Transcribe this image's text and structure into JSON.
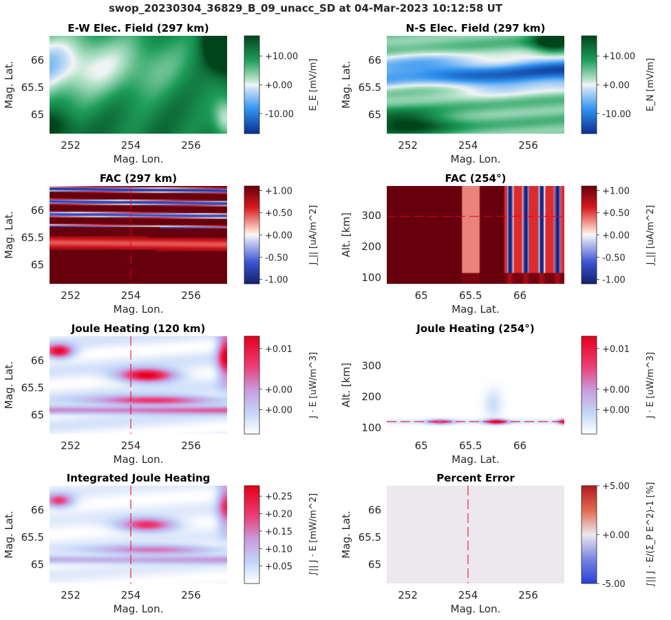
{
  "figure": {
    "title": "swop_20230304_36829_B_09_unacc_SD at 04-Mar-2023 10:12:58 UT"
  },
  "chart_data": [
    {
      "id": "ew-efield",
      "type": "heatmap",
      "title": "E-W Elec. Field (297 km)",
      "xlabel": "Mag. Lon.",
      "ylabel": "Mag. Lat.",
      "xlim": [
        251.3,
        257.2
      ],
      "ylim": [
        64.65,
        66.45
      ],
      "xticks": [
        252,
        254,
        256
      ],
      "xtick_labels": [
        "252",
        "254",
        "256"
      ],
      "yticks": [
        65,
        65.5,
        66
      ],
      "ytick_labels": [
        "65",
        "65.5",
        "66"
      ],
      "colormap": "green-white-blue",
      "colorbar": {
        "label": "E_E [mV/m]",
        "ticks": [
          10,
          0,
          -10
        ],
        "tick_labels": [
          "+10.00",
          "+0.00",
          "-10.00"
        ],
        "range": [
          -17,
          17
        ]
      },
      "reference_lines": []
    },
    {
      "id": "ns-efield",
      "type": "heatmap",
      "title": "N-S Elec. Field (297 km)",
      "xlabel": "Mag. Lon.",
      "ylabel": "Mag. Lat.",
      "xlim": [
        251.3,
        257.2
      ],
      "ylim": [
        64.65,
        66.45
      ],
      "xticks": [
        252,
        254,
        256
      ],
      "xtick_labels": [
        "252",
        "254",
        "256"
      ],
      "yticks": [
        65,
        65.5,
        66
      ],
      "ytick_labels": [
        "65",
        "65.5",
        "66"
      ],
      "colormap": "green-white-blue",
      "colorbar": {
        "label": "E_N [mV/m]",
        "ticks": [
          10,
          0,
          -10
        ],
        "tick_labels": [
          "+10.00",
          "+0.00",
          "-10.00"
        ],
        "range": [
          -17,
          17
        ]
      },
      "reference_lines": []
    },
    {
      "id": "fac-297",
      "type": "heatmap",
      "title": "FAC (297 km)",
      "xlabel": "Mag. Lon.",
      "ylabel": "Mag. Lat.",
      "xlim": [
        251.3,
        257.2
      ],
      "ylim": [
        64.65,
        66.45
      ],
      "xticks": [
        252,
        254,
        256
      ],
      "xtick_labels": [
        "252",
        "254",
        "256"
      ],
      "yticks": [
        65,
        65.5,
        66
      ],
      "ytick_labels": [
        "65",
        "65.5",
        "66"
      ],
      "colormap": "red-white-blue",
      "colorbar": {
        "label": "J_|| [uA/m^2]",
        "ticks": [
          1,
          0.5,
          0,
          -0.5,
          -1
        ],
        "tick_labels": [
          "+1.00",
          "+0.50",
          "+0.00",
          "-0.50",
          "-1.00"
        ],
        "range": [
          -1.1,
          1.1
        ]
      },
      "reference_lines": [
        {
          "axis": "x",
          "value": 254
        }
      ]
    },
    {
      "id": "fac-254",
      "type": "heatmap",
      "title": "FAC (254°)",
      "xlabel": "Mag. Lat.",
      "ylabel": "Alt. [km]",
      "xlim": [
        64.65,
        66.45
      ],
      "ylim": [
        80,
        395
      ],
      "xticks": [
        65,
        65.5,
        66
      ],
      "xtick_labels": [
        "65",
        "65.5",
        "66"
      ],
      "yticks": [
        100,
        200,
        300
      ],
      "ytick_labels": [
        "100",
        "200",
        "300"
      ],
      "colormap": "red-white-blue",
      "colorbar": {
        "label": "J_|| [uA/m^2]",
        "ticks": [
          1,
          0.5,
          0,
          -0.5,
          -1
        ],
        "tick_labels": [
          "+1.00",
          "+0.50",
          "+0.00",
          "-0.50",
          "-1.00"
        ],
        "range": [
          -1.1,
          1.1
        ]
      },
      "reference_lines": [
        {
          "axis": "y",
          "value": 297
        }
      ]
    },
    {
      "id": "joule-120",
      "type": "heatmap",
      "title": "Joule Heating (120 km)",
      "xlabel": "Mag. Lon.",
      "ylabel": "Mag. Lat.",
      "xlim": [
        251.3,
        257.2
      ],
      "ylim": [
        64.65,
        66.45
      ],
      "xticks": [
        252,
        254,
        256
      ],
      "xtick_labels": [
        "252",
        "254",
        "256"
      ],
      "yticks": [
        65,
        65.5,
        66
      ],
      "ytick_labels": [
        "65",
        "65.5",
        "66"
      ],
      "colormap": "white-blue-pink-red",
      "colorbar": {
        "label": "J · E [uW/m^3]",
        "ticks": [
          0.01,
          0,
          -0.005
        ],
        "tick_labels": [
          "+0.01",
          "+0.00",
          "+0.00"
        ],
        "range": [
          -0.011,
          0.013
        ]
      },
      "reference_lines": [
        {
          "axis": "x",
          "value": 254
        }
      ]
    },
    {
      "id": "joule-254",
      "type": "heatmap",
      "title": "Joule Heating (254°)",
      "xlabel": "Mag. Lat.",
      "ylabel": "Alt. [km]",
      "xlim": [
        64.65,
        66.45
      ],
      "ylim": [
        80,
        395
      ],
      "xticks": [
        65,
        65.5,
        66
      ],
      "xtick_labels": [
        "65",
        "65.5",
        "66"
      ],
      "yticks": [
        100,
        200,
        300
      ],
      "ytick_labels": [
        "100",
        "200",
        "300"
      ],
      "colormap": "white-blue-pink-red",
      "colorbar": {
        "label": "J · E [uW/m^3]",
        "ticks": [
          0.01,
          0,
          -0.005
        ],
        "tick_labels": [
          "+0.01",
          "+0.00",
          "+0.00"
        ],
        "range": [
          -0.011,
          0.013
        ]
      },
      "reference_lines": [
        {
          "axis": "y",
          "value": 120
        }
      ]
    },
    {
      "id": "integrated-joule",
      "type": "heatmap",
      "title": "Integrated Joule Heating",
      "xlabel": "Mag. Lon.",
      "ylabel": "Mag. Lat.",
      "xlim": [
        251.3,
        257.2
      ],
      "ylim": [
        64.65,
        66.45
      ],
      "xticks": [
        252,
        254,
        256
      ],
      "xtick_labels": [
        "252",
        "254",
        "256"
      ],
      "yticks": [
        65,
        65.5,
        66
      ],
      "ytick_labels": [
        "65",
        "65.5",
        "66"
      ],
      "colormap": "white-blue-pink-red",
      "colorbar": {
        "label": "∫|| J · E [mW/m^2]",
        "ticks": [
          0.25,
          0.2,
          0.15,
          0.1,
          0.05
        ],
        "tick_labels": [
          "+0.25",
          "+0.20",
          "+0.15",
          "+0.10",
          "+0.05"
        ],
        "range": [
          0,
          0.28
        ]
      },
      "reference_lines": [
        {
          "axis": "x",
          "value": 254
        }
      ]
    },
    {
      "id": "percent-error",
      "type": "heatmap",
      "title": "Percent Error",
      "xlabel": "Mag. Lon.",
      "ylabel": "Mag. Lat.",
      "xlim": [
        251.3,
        257.2
      ],
      "ylim": [
        64.65,
        66.45
      ],
      "xticks": [
        252,
        254,
        256
      ],
      "xtick_labels": [
        "252",
        "254",
        "256"
      ],
      "yticks": [
        65,
        65.5,
        66
      ],
      "ytick_labels": [
        "65",
        "65.5",
        "66"
      ],
      "colormap": "blue-white-red",
      "colorbar": {
        "label": "∫|| J · E/(Σ_P E^2)-1 [%]",
        "ticks": [
          5,
          0,
          -5
        ],
        "tick_labels": [
          "+5.00",
          "+0.00",
          "-5.00"
        ],
        "range": [
          -5,
          5
        ]
      },
      "reference_lines": [
        {
          "axis": "x",
          "value": 254
        }
      ]
    }
  ]
}
